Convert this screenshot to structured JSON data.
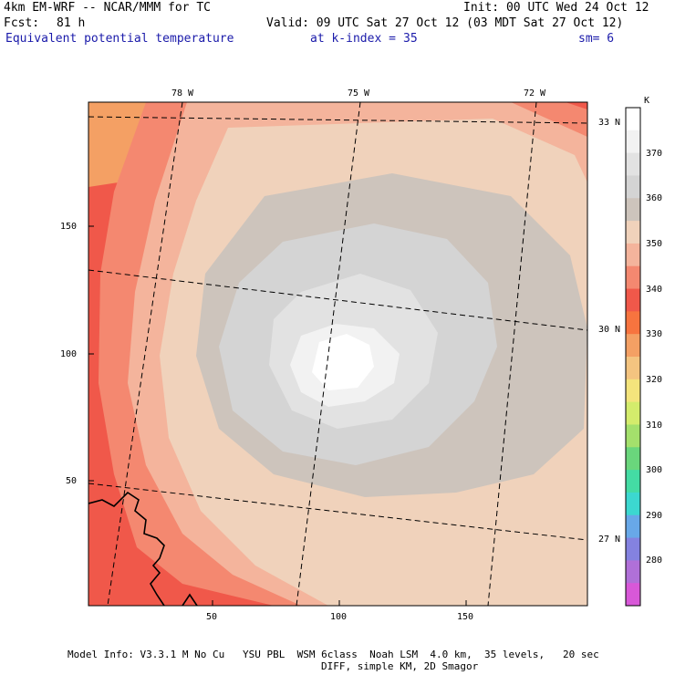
{
  "header": {
    "model": "4km EM-WRF -- NCAR/MMM for TC",
    "init": "Init: 00 UTC Wed 24 Oct 12",
    "fcst_label": "Fcst:",
    "fcst_value": "81 h",
    "valid": "Valid: 09 UTC Sat 27 Oct 12 (03 MDT Sat 27 Oct 12)",
    "field": "Equivalent potential temperature",
    "level_label": "at k-index =",
    "level_value": "35",
    "smooth": "sm= 6"
  },
  "map": {
    "lon_labels": [
      "78 W",
      "75 W",
      "72 W"
    ],
    "lat_labels": [
      "33 N",
      "30 N",
      "27 N"
    ],
    "x_ticks": [
      "50",
      "100",
      "150"
    ],
    "y_ticks": [
      "150",
      "100",
      "50"
    ]
  },
  "colorbar": {
    "unit": "K",
    "levels": [
      "370",
      "360",
      "350",
      "340",
      "330",
      "320",
      "310",
      "300",
      "290",
      "280"
    ],
    "colors": [
      "#ffffff",
      "#f2f2f2",
      "#e2e2e2",
      "#d4d4d4",
      "#cdc4bc",
      "#f0d2bb",
      "#f4b49c",
      "#f48870",
      "#f0584a",
      "#f7743f",
      "#f4a064",
      "#f4c480",
      "#f4e47c",
      "#d4ec6c",
      "#a4e06c",
      "#6ad67c",
      "#44dca4",
      "#3cd8d0",
      "#68a8e8",
      "#8482e0",
      "#b070d8",
      "#d858d8"
    ]
  },
  "footer": {
    "line1": "Model Info: V3.3.1 M No Cu   YSU PBL  WSM 6class  Noah LSM  4.0 km,  35 levels,   20 sec",
    "line2": "DIFF, simple KM, 2D Smagor"
  }
}
